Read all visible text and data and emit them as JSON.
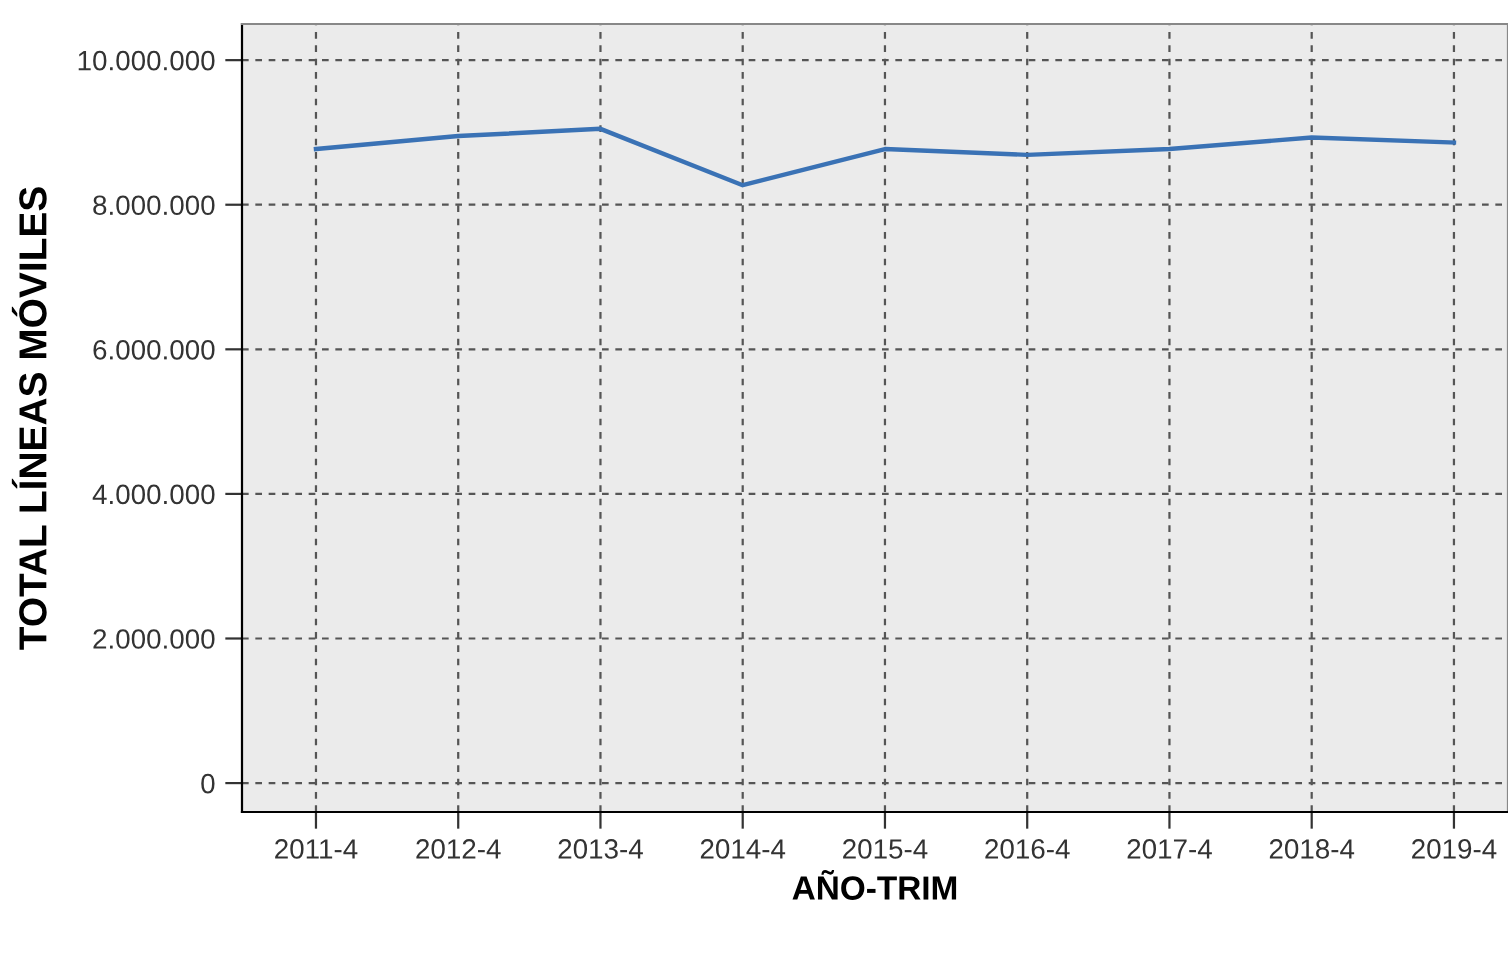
{
  "chart_data": {
    "type": "line",
    "xlabel": "AÑO-TRIM",
    "ylabel": "TOTAL LÍNEAS MÓVILES",
    "categories": [
      "2011-4",
      "2012-4",
      "2013-4",
      "2014-4",
      "2015-4",
      "2016-4",
      "2017-4",
      "2018-4",
      "2019-4"
    ],
    "series": [
      {
        "color": "#3a72b5",
        "values": [
          8770000,
          8950000,
          9050000,
          8270000,
          8770000,
          8690000,
          8770000,
          8930000,
          8860000
        ]
      }
    ],
    "ylim": [
      -400000,
      10500000
    ],
    "yticks": [
      0,
      {
        "value": 2000000,
        "label": "2.000.000"
      },
      {
        "value": 4000000,
        "label": "4.000.000"
      },
      {
        "value": 6000000,
        "label": "6.000.000"
      },
      {
        "value": 8000000,
        "label": "8.000.000"
      },
      {
        "value": 10000000,
        "label": "10.000.000"
      }
    ],
    "grid": true,
    "line_style": "solid",
    "marker": "none",
    "legend": false
  }
}
